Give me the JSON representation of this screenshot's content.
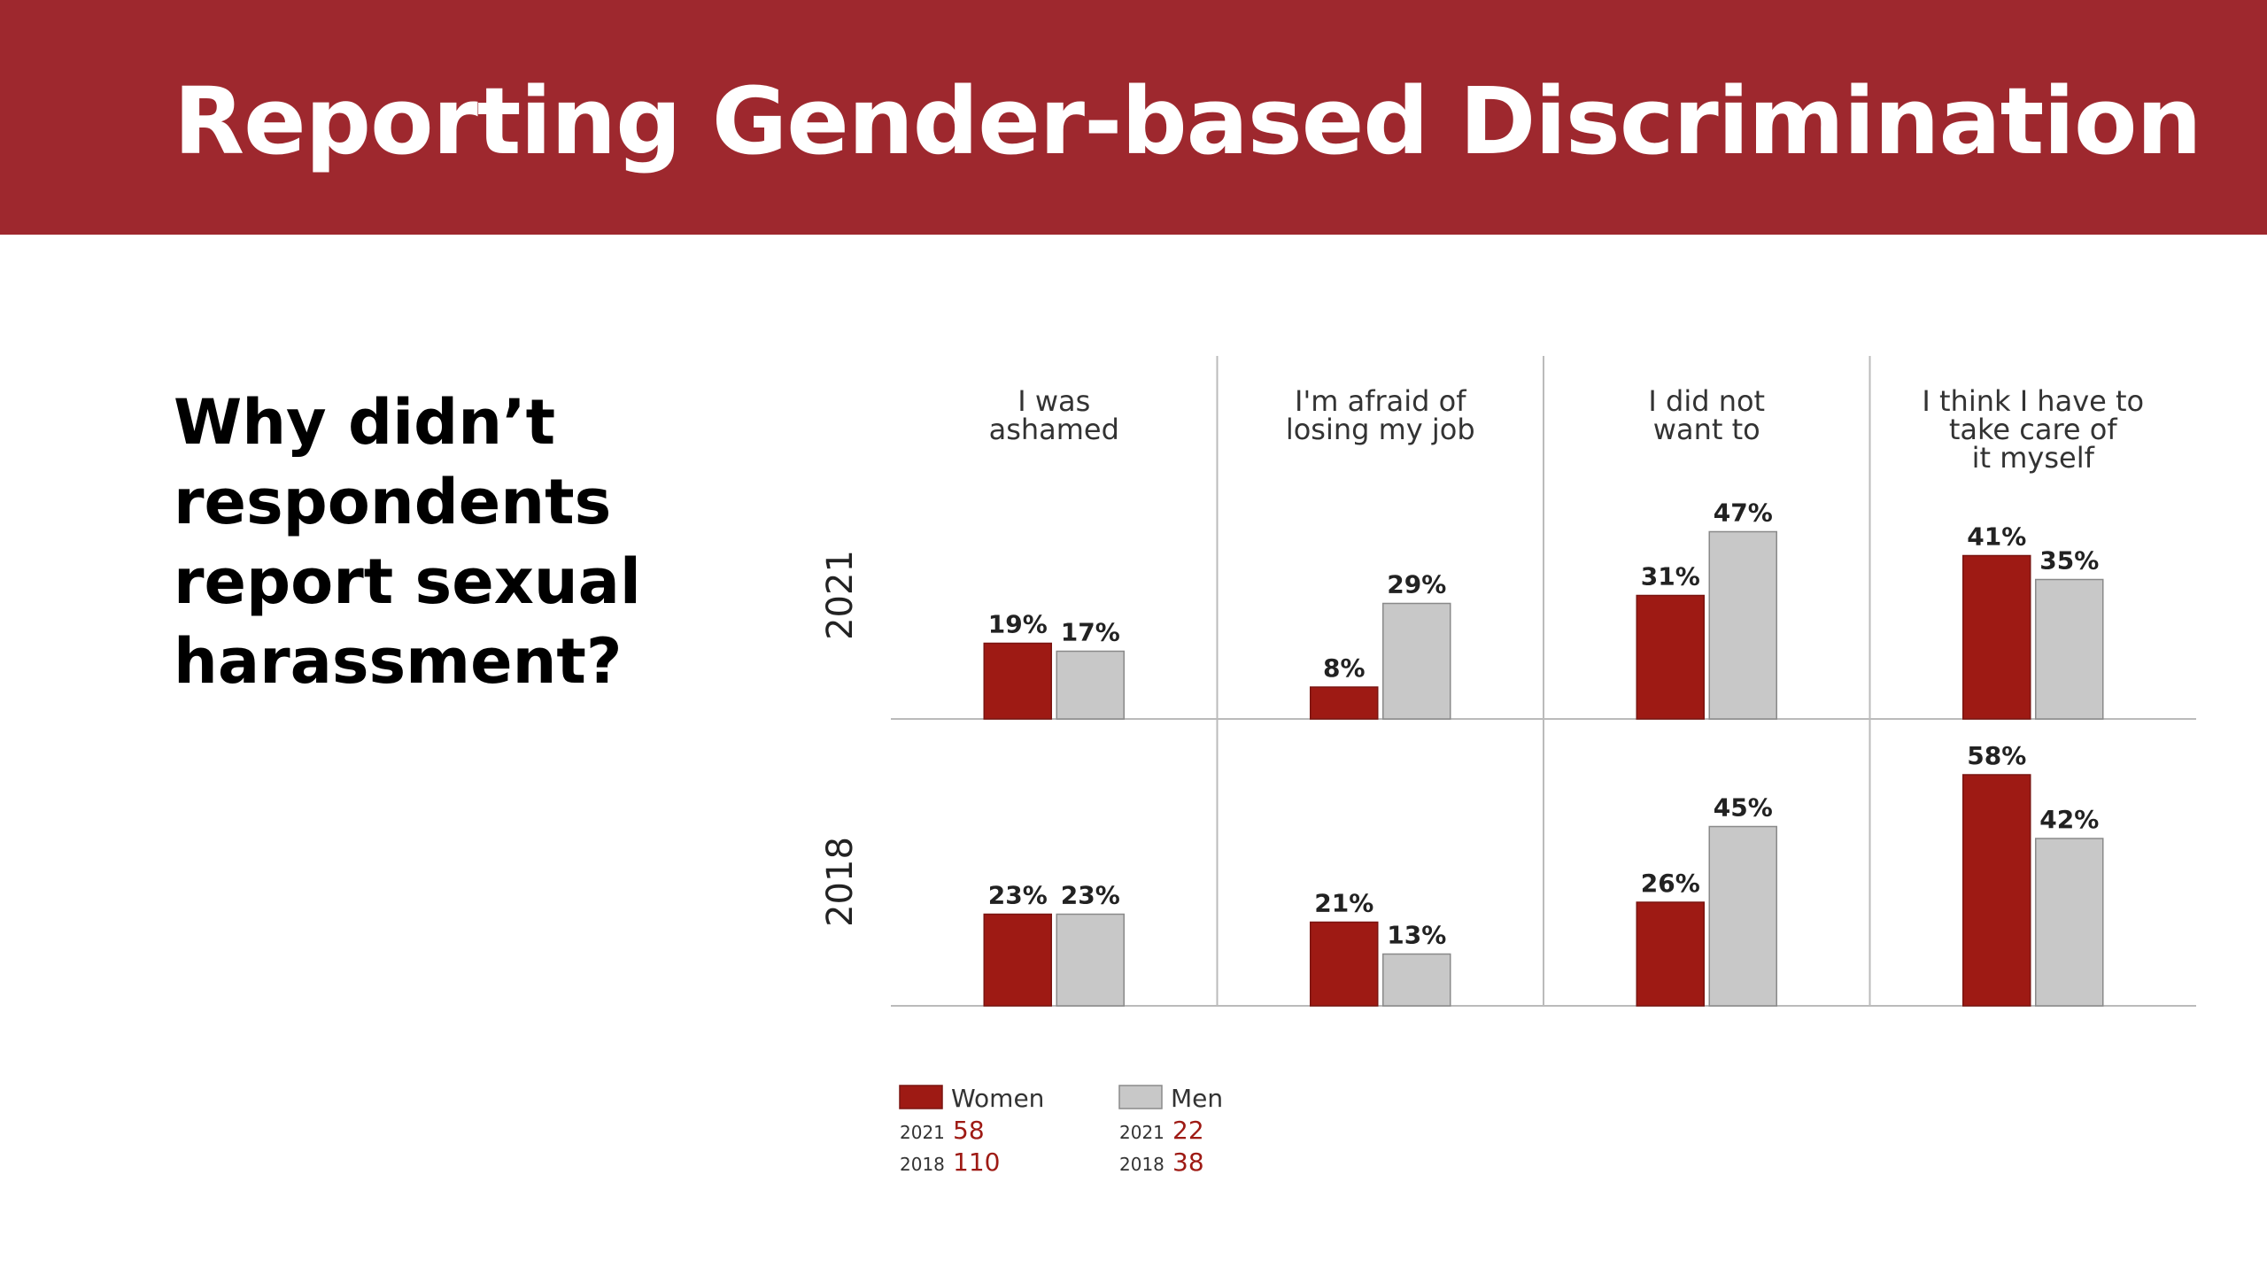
{
  "header": {
    "title": "Reporting Gender-based Discrimination"
  },
  "question": "Why didn’t respondents report sexual harassment?",
  "colors": {
    "banner": "#9e282e",
    "women": "#9e1a14",
    "men": "#c8c8c8"
  },
  "chart_data": {
    "type": "bar",
    "categories": [
      [
        "I was",
        "ashamed"
      ],
      [
        "I'm afraid of",
        "losing my job"
      ],
      [
        "I did not",
        "want to"
      ],
      [
        "I think I have to",
        "take care of",
        "it myself"
      ]
    ],
    "panels": [
      {
        "year": "2021",
        "series": [
          {
            "name": "Women",
            "values": [
              19,
              8,
              31,
              41
            ]
          },
          {
            "name": "Men",
            "values": [
              17,
              29,
              47,
              35
            ]
          }
        ]
      },
      {
        "year": "2018",
        "series": [
          {
            "name": "Women",
            "values": [
              23,
              21,
              26,
              58
            ]
          },
          {
            "name": "Men",
            "values": [
              23,
              13,
              45,
              42
            ]
          }
        ]
      }
    ],
    "value_suffix": "%",
    "ylim": [
      0,
      60
    ],
    "legend": {
      "placement": "bottom-left",
      "items": [
        {
          "name": "Women",
          "counts": [
            {
              "year": "2021",
              "n": "58"
            },
            {
              "year": "2018",
              "n": "110"
            }
          ]
        },
        {
          "name": "Men",
          "counts": [
            {
              "year": "2021",
              "n": "22"
            },
            {
              "year": "2018",
              "n": "38"
            }
          ]
        }
      ]
    }
  }
}
